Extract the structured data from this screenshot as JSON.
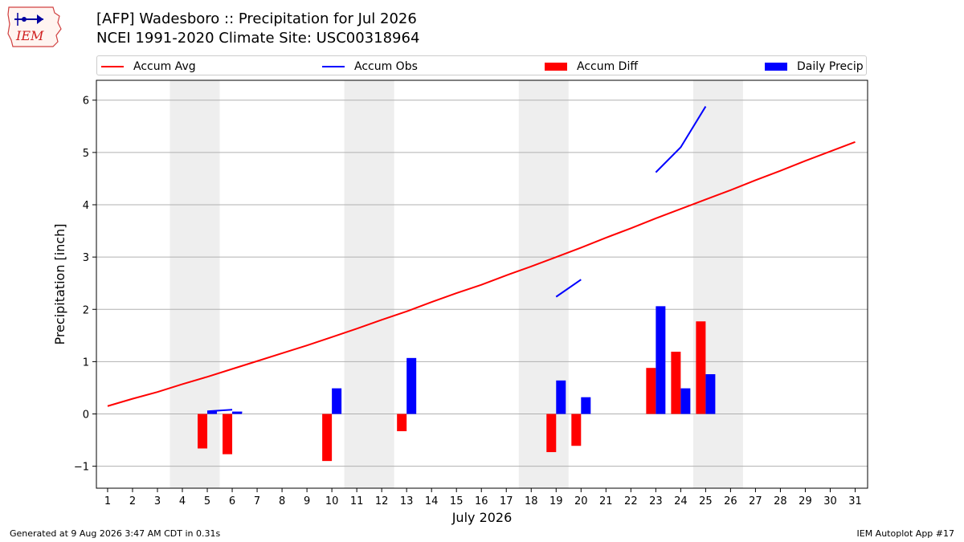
{
  "header": {
    "logo_text": "IEM",
    "title_line1": "[AFP] Wadesboro :: Precipitation for Jul 2026",
    "title_line2": "NCEI 1991-2020 Climate Site: USC00318964"
  },
  "legend": {
    "accum_avg": "Accum Avg",
    "accum_obs": "Accum Obs",
    "accum_diff": "Accum Diff",
    "daily_precip": "Daily Precip"
  },
  "colors": {
    "accum_avg": "#ff0000",
    "accum_obs": "#0000ff",
    "accum_diff": "#ff0000",
    "daily_precip": "#0000ff",
    "weekend_shade": "#eeeeee",
    "grid": "#b0b0b0"
  },
  "footer": {
    "left": "Generated at 9 Aug 2026 3:47 AM CDT in 0.31s",
    "right": "IEM Autoplot App #17"
  },
  "chart_data": {
    "type": "bar",
    "xlabel": "July 2026",
    "ylabel": "Precipitation [inch]",
    "xlim": [
      0.55,
      31.5
    ],
    "ylim": [
      -1.42,
      6.38
    ],
    "x_ticks": [
      1,
      2,
      3,
      4,
      5,
      6,
      7,
      8,
      9,
      10,
      11,
      12,
      13,
      14,
      15,
      16,
      17,
      18,
      19,
      20,
      21,
      22,
      23,
      24,
      25,
      26,
      27,
      28,
      29,
      30,
      31
    ],
    "y_ticks": [
      -1,
      0,
      1,
      2,
      3,
      4,
      5,
      6
    ],
    "y_tick_labels": [
      "−1",
      "0",
      "1",
      "2",
      "3",
      "4",
      "5",
      "6"
    ],
    "grid": "horizontal",
    "legend_position": "top",
    "weekend_spans": [
      [
        3.5,
        5.5
      ],
      [
        10.5,
        12.5
      ],
      [
        17.5,
        19.5
      ],
      [
        24.5,
        26.5
      ]
    ],
    "accum_avg": {
      "days": [
        1,
        2,
        3,
        4,
        5,
        6,
        7,
        8,
        9,
        10,
        11,
        12,
        13,
        14,
        15,
        16,
        17,
        18,
        19,
        20,
        21,
        22,
        23,
        24,
        25,
        26,
        27,
        28,
        29,
        30,
        31
      ],
      "values": [
        0.15,
        0.29,
        0.42,
        0.57,
        0.71,
        0.86,
        1.01,
        1.16,
        1.31,
        1.47,
        1.63,
        1.8,
        1.96,
        2.14,
        2.31,
        2.47,
        2.65,
        2.82,
        3.0,
        3.18,
        3.37,
        3.55,
        3.74,
        3.92,
        4.1,
        4.28,
        4.47,
        4.65,
        4.84,
        5.02,
        5.2
      ]
    },
    "accum_obs_segments": [
      {
        "days": [
          5,
          6
        ],
        "values": [
          0.05,
          0.08
        ]
      },
      {
        "days": [
          6,
          6.4
        ],
        "values": [
          0.03,
          0.03
        ]
      },
      {
        "days": [
          19,
          20
        ],
        "values": [
          2.24,
          2.57
        ]
      },
      {
        "days": [
          23,
          24,
          25
        ],
        "values": [
          4.62,
          5.1,
          5.88
        ]
      }
    ],
    "accum_diff": {
      "days": [
        5,
        6,
        10,
        13,
        19,
        20,
        23,
        24,
        25
      ],
      "values": [
        -0.66,
        -0.77,
        -0.9,
        -0.33,
        -0.73,
        -0.61,
        0.88,
        1.19,
        1.77
      ]
    },
    "daily_precip": {
      "days": [
        5,
        6,
        10,
        13,
        19,
        20,
        23,
        24,
        25
      ],
      "values": [
        0.05,
        0.03,
        0.49,
        1.07,
        0.64,
        0.32,
        2.06,
        0.49,
        0.76
      ]
    }
  }
}
